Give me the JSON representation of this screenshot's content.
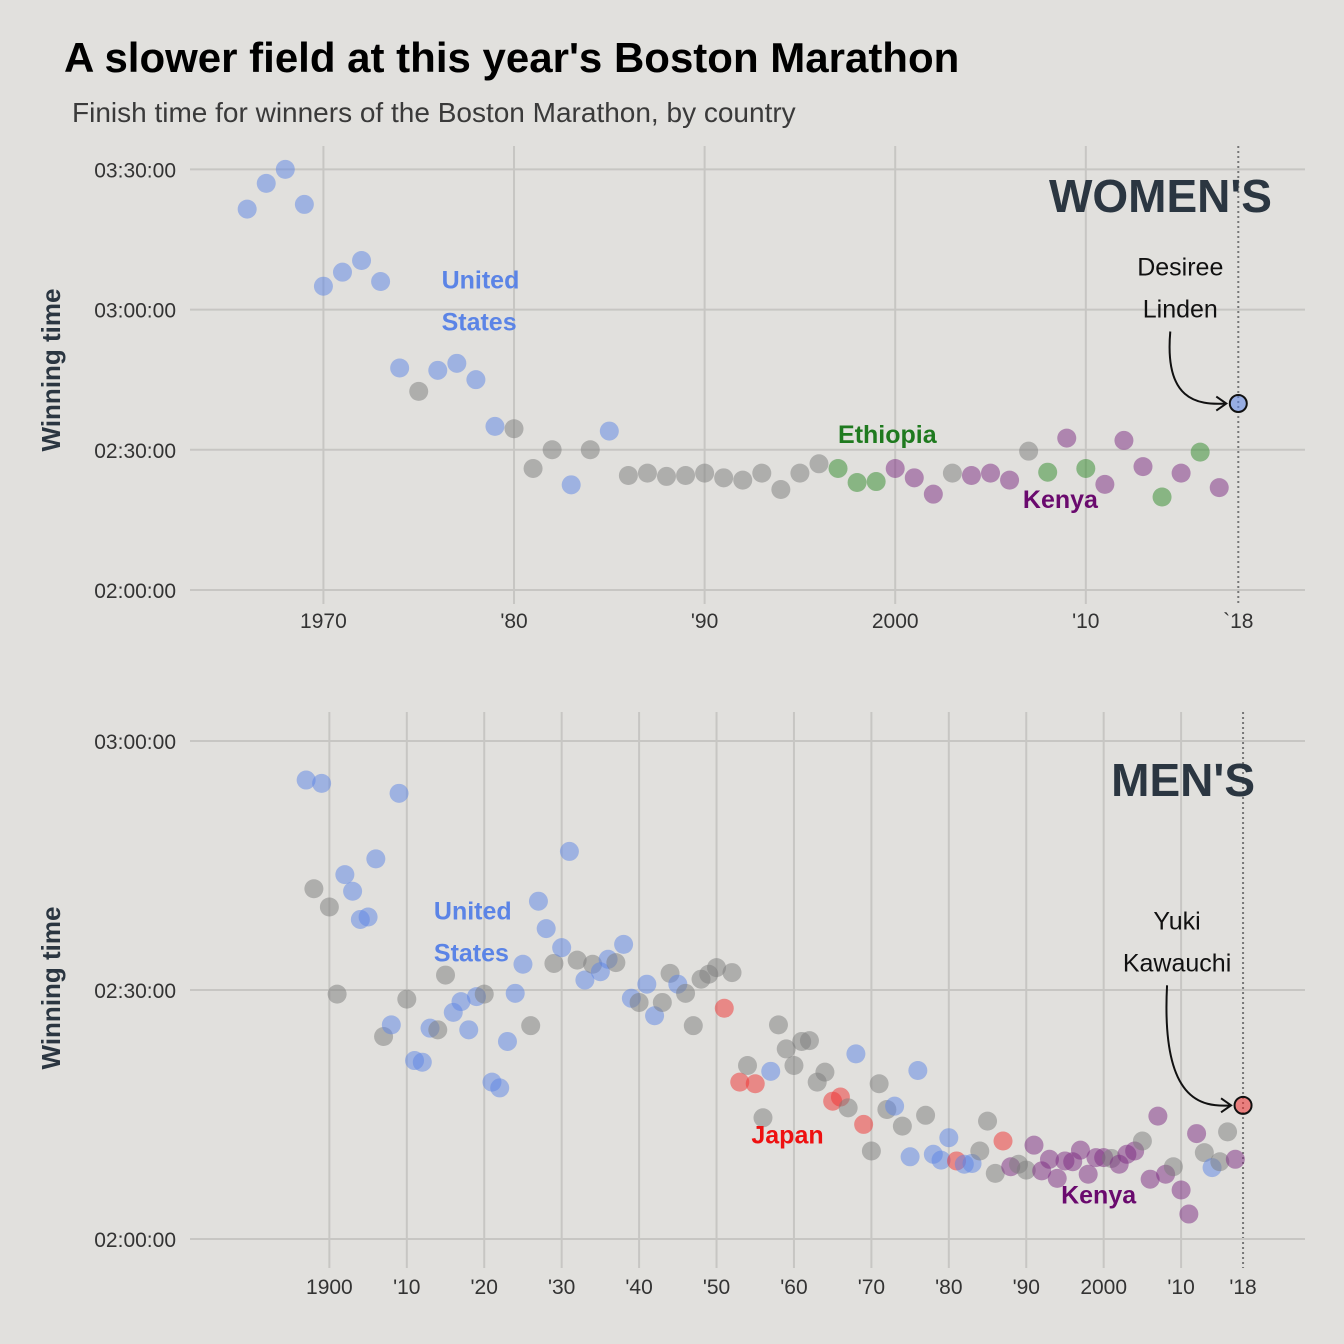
{
  "title": "A slower field at this year's Boston Marathon",
  "subtitle": "Finish time for winners of the Boston Marathon, by country",
  "colors": {
    "USA": "#5b84e6",
    "Other": "#7c7c7c",
    "Ethiopia": "#2f8a2a",
    "Kenya": "#7b2a82",
    "Japan": "#f03030",
    "ethiopia_label": "#1f7a1f",
    "kenya_label": "#6a0a6e",
    "japan_label": "#ee1111",
    "usa_label": "#5b84e6"
  },
  "chart_data": [
    {
      "type": "scatter",
      "panel": "WOMEN'S",
      "ylabel": "Winning time",
      "xlim": [
        1963,
        2021.5
      ],
      "ylim_minutes": [
        117,
        215
      ],
      "x_ticks": [
        1970,
        1980,
        1990,
        2000,
        2010,
        2018
      ],
      "x_tick_labels": [
        "1970",
        "'80",
        "'90",
        "2000",
        "'10",
        "`18"
      ],
      "y_ticks_minutes": [
        120,
        150,
        180,
        210
      ],
      "y_tick_labels": [
        "02:00:00",
        "02:30:00",
        "03:00:00",
        "03:30:00"
      ],
      "annotations": [
        {
          "text": [
            "United",
            "States"
          ],
          "x": 1976.2,
          "y_min": 184.5,
          "color_key": "usa_label"
        },
        {
          "text": [
            "Ethiopia"
          ],
          "x": 1997,
          "y_min": 151.5,
          "color_key": "ethiopia_label"
        },
        {
          "text": [
            "Kenya"
          ],
          "x": 2006.7,
          "y_min": 137.5,
          "color_key": "kenya_label"
        }
      ],
      "callout": {
        "text": [
          "Desiree",
          "Linden"
        ],
        "x": 2018,
        "y_min": 159.9
      },
      "points": [
        {
          "year": 1966,
          "min": 201.5,
          "c": "USA"
        },
        {
          "year": 1967,
          "min": 207,
          "c": "USA"
        },
        {
          "year": 1968,
          "min": 210,
          "c": "USA"
        },
        {
          "year": 1969,
          "min": 202.5,
          "c": "USA"
        },
        {
          "year": 1970,
          "min": 185,
          "c": "USA"
        },
        {
          "year": 1971,
          "min": 188,
          "c": "USA"
        },
        {
          "year": 1972,
          "min": 190.5,
          "c": "USA"
        },
        {
          "year": 1973,
          "min": 186,
          "c": "USA"
        },
        {
          "year": 1974,
          "min": 167.5,
          "c": "USA"
        },
        {
          "year": 1975,
          "min": 162.5,
          "c": "Other"
        },
        {
          "year": 1976,
          "min": 167,
          "c": "USA"
        },
        {
          "year": 1977,
          "min": 168.5,
          "c": "USA"
        },
        {
          "year": 1978,
          "min": 165,
          "c": "USA"
        },
        {
          "year": 1979,
          "min": 155,
          "c": "USA"
        },
        {
          "year": 1980,
          "min": 154.5,
          "c": "Other"
        },
        {
          "year": 1981,
          "min": 146,
          "c": "Other"
        },
        {
          "year": 1982,
          "min": 150,
          "c": "Other"
        },
        {
          "year": 1983,
          "min": 142.5,
          "c": "USA"
        },
        {
          "year": 1984,
          "min": 150,
          "c": "Other"
        },
        {
          "year": 1985,
          "min": 154,
          "c": "USA"
        },
        {
          "year": 1986,
          "min": 144.5,
          "c": "Other"
        },
        {
          "year": 1987,
          "min": 145,
          "c": "Other"
        },
        {
          "year": 1988,
          "min": 144.3,
          "c": "Other"
        },
        {
          "year": 1989,
          "min": 144.5,
          "c": "Other"
        },
        {
          "year": 1990,
          "min": 145,
          "c": "Other"
        },
        {
          "year": 1991,
          "min": 144,
          "c": "Other"
        },
        {
          "year": 1992,
          "min": 143.5,
          "c": "Other"
        },
        {
          "year": 1993,
          "min": 145,
          "c": "Other"
        },
        {
          "year": 1994,
          "min": 141.5,
          "c": "Other"
        },
        {
          "year": 1995,
          "min": 145,
          "c": "Other"
        },
        {
          "year": 1996,
          "min": 147,
          "c": "Other"
        },
        {
          "year": 1997,
          "min": 146,
          "c": "Ethiopia"
        },
        {
          "year": 1998,
          "min": 143,
          "c": "Ethiopia"
        },
        {
          "year": 1999,
          "min": 143.2,
          "c": "Ethiopia"
        },
        {
          "year": 2000,
          "min": 146,
          "c": "Kenya"
        },
        {
          "year": 2001,
          "min": 144,
          "c": "Kenya"
        },
        {
          "year": 2002,
          "min": 140.5,
          "c": "Kenya"
        },
        {
          "year": 2003,
          "min": 145,
          "c": "Other"
        },
        {
          "year": 2004,
          "min": 144.5,
          "c": "Kenya"
        },
        {
          "year": 2005,
          "min": 145,
          "c": "Kenya"
        },
        {
          "year": 2006,
          "min": 143.5,
          "c": "Kenya"
        },
        {
          "year": 2007,
          "min": 149.7,
          "c": "Other"
        },
        {
          "year": 2008,
          "min": 145.2,
          "c": "Ethiopia"
        },
        {
          "year": 2009,
          "min": 152.5,
          "c": "Kenya"
        },
        {
          "year": 2010,
          "min": 146,
          "c": "Ethiopia"
        },
        {
          "year": 2011,
          "min": 142.6,
          "c": "Kenya"
        },
        {
          "year": 2012,
          "min": 152,
          "c": "Kenya"
        },
        {
          "year": 2013,
          "min": 146.4,
          "c": "Kenya"
        },
        {
          "year": 2014,
          "min": 139.9,
          "c": "Ethiopia"
        },
        {
          "year": 2015,
          "min": 145,
          "c": "Kenya"
        },
        {
          "year": 2016,
          "min": 149.5,
          "c": "Ethiopia"
        },
        {
          "year": 2017,
          "min": 141.9,
          "c": "Kenya"
        },
        {
          "year": 2018,
          "min": 159.9,
          "c": "USA",
          "highlight": true
        }
      ]
    },
    {
      "type": "scatter",
      "panel": "MEN'S",
      "ylabel": "Winning time",
      "xlim": [
        1882,
        2026
      ],
      "ylim_minutes": [
        116.5,
        183.5
      ],
      "x_ticks": [
        1900,
        1910,
        1920,
        1930,
        1940,
        1950,
        1960,
        1970,
        1980,
        1990,
        2000,
        2010,
        2018
      ],
      "x_tick_labels": [
        "1900",
        "'10",
        "'20",
        "'30",
        "'40",
        "'50",
        "'60",
        "'70",
        "'80",
        "'90",
        "2000",
        "'10",
        "'18"
      ],
      "y_ticks_minutes": [
        120,
        150,
        180
      ],
      "y_tick_labels": [
        "02:00:00",
        "02:30:00",
        "03:00:00"
      ],
      "annotations": [
        {
          "text": [
            "United",
            "States"
          ],
          "x": 1913.5,
          "y_min": 158.5,
          "color_key": "usa_label"
        },
        {
          "text": [
            "Japan"
          ],
          "x": 1954.5,
          "y_min": 131.5,
          "color_key": "japan_label"
        },
        {
          "text": [
            "Kenya"
          ],
          "x": 1994.5,
          "y_min": 124.3,
          "color_key": "kenya_label"
        }
      ],
      "callout": {
        "text": [
          "Yuki",
          "Kawauchi"
        ],
        "x": 2018,
        "y_min": 136.1
      },
      "points": [
        {
          "year": 1897,
          "min": 175.3,
          "c": "USA"
        },
        {
          "year": 1898,
          "min": 162.2,
          "c": "Other"
        },
        {
          "year": 1899,
          "min": 174.9,
          "c": "USA"
        },
        {
          "year": 1900,
          "min": 160,
          "c": "Other"
        },
        {
          "year": 1901,
          "min": 149.5,
          "c": "Other"
        },
        {
          "year": 1902,
          "min": 163.9,
          "c": "USA"
        },
        {
          "year": 1903,
          "min": 161.9,
          "c": "USA"
        },
        {
          "year": 1904,
          "min": 158.5,
          "c": "USA"
        },
        {
          "year": 1905,
          "min": 158.8,
          "c": "USA"
        },
        {
          "year": 1906,
          "min": 165.8,
          "c": "USA"
        },
        {
          "year": 1907,
          "min": 144.4,
          "c": "Other"
        },
        {
          "year": 1908,
          "min": 145.8,
          "c": "USA"
        },
        {
          "year": 1909,
          "min": 173.7,
          "c": "USA"
        },
        {
          "year": 1910,
          "min": 148.9,
          "c": "Other"
        },
        {
          "year": 1911,
          "min": 141.5,
          "c": "USA"
        },
        {
          "year": 1912,
          "min": 141.3,
          "c": "USA"
        },
        {
          "year": 1913,
          "min": 145.4,
          "c": "USA"
        },
        {
          "year": 1914,
          "min": 145.2,
          "c": "Other"
        },
        {
          "year": 1915,
          "min": 151.8,
          "c": "Other"
        },
        {
          "year": 1916,
          "min": 147.3,
          "c": "USA"
        },
        {
          "year": 1917,
          "min": 148.6,
          "c": "USA"
        },
        {
          "year": 1918,
          "min": 145.2,
          "c": "USA"
        },
        {
          "year": 1919,
          "min": 149.2,
          "c": "USA"
        },
        {
          "year": 1920,
          "min": 149.5,
          "c": "Other"
        },
        {
          "year": 1921,
          "min": 138.9,
          "c": "USA"
        },
        {
          "year": 1922,
          "min": 138.2,
          "c": "USA"
        },
        {
          "year": 1923,
          "min": 143.8,
          "c": "USA"
        },
        {
          "year": 1924,
          "min": 149.6,
          "c": "USA"
        },
        {
          "year": 1925,
          "min": 153.1,
          "c": "USA"
        },
        {
          "year": 1926,
          "min": 145.7,
          "c": "Other"
        },
        {
          "year": 1927,
          "min": 160.7,
          "c": "USA"
        },
        {
          "year": 1928,
          "min": 157.4,
          "c": "USA"
        },
        {
          "year": 1929,
          "min": 153.2,
          "c": "Other"
        },
        {
          "year": 1930,
          "min": 155.1,
          "c": "USA"
        },
        {
          "year": 1931,
          "min": 166.7,
          "c": "USA"
        },
        {
          "year": 1932,
          "min": 153.6,
          "c": "Other"
        },
        {
          "year": 1933,
          "min": 151.2,
          "c": "USA"
        },
        {
          "year": 1934,
          "min": 153.1,
          "c": "Other"
        },
        {
          "year": 1935,
          "min": 152.2,
          "c": "USA"
        },
        {
          "year": 1936,
          "min": 153.7,
          "c": "USA"
        },
        {
          "year": 1937,
          "min": 153.3,
          "c": "Other"
        },
        {
          "year": 1938,
          "min": 155.5,
          "c": "USA"
        },
        {
          "year": 1939,
          "min": 149,
          "c": "USA"
        },
        {
          "year": 1940,
          "min": 148.5,
          "c": "Other"
        },
        {
          "year": 1941,
          "min": 150.7,
          "c": "USA"
        },
        {
          "year": 1942,
          "min": 146.9,
          "c": "USA"
        },
        {
          "year": 1943,
          "min": 148.5,
          "c": "Other"
        },
        {
          "year": 1944,
          "min": 152,
          "c": "Other"
        },
        {
          "year": 1945,
          "min": 150.7,
          "c": "USA"
        },
        {
          "year": 1946,
          "min": 149.6,
          "c": "Other"
        },
        {
          "year": 1947,
          "min": 145.7,
          "c": "Other"
        },
        {
          "year": 1948,
          "min": 151.3,
          "c": "Other"
        },
        {
          "year": 1949,
          "min": 151.9,
          "c": "Other"
        },
        {
          "year": 1950,
          "min": 152.7,
          "c": "Other"
        },
        {
          "year": 1951,
          "min": 147.8,
          "c": "Japan"
        },
        {
          "year": 1952,
          "min": 152.1,
          "c": "Other"
        },
        {
          "year": 1953,
          "min": 138.9,
          "c": "Japan"
        },
        {
          "year": 1954,
          "min": 140.9,
          "c": "Other"
        },
        {
          "year": 1955,
          "min": 138.7,
          "c": "Japan"
        },
        {
          "year": 1956,
          "min": 134.6,
          "c": "Other"
        },
        {
          "year": 1957,
          "min": 140.2,
          "c": "USA"
        },
        {
          "year": 1958,
          "min": 145.8,
          "c": "Other"
        },
        {
          "year": 1959,
          "min": 142.9,
          "c": "Other"
        },
        {
          "year": 1960,
          "min": 140.9,
          "c": "Other"
        },
        {
          "year": 1961,
          "min": 143.8,
          "c": "Other"
        },
        {
          "year": 1962,
          "min": 143.9,
          "c": "Other"
        },
        {
          "year": 1963,
          "min": 138.9,
          "c": "Other"
        },
        {
          "year": 1964,
          "min": 140.1,
          "c": "Other"
        },
        {
          "year": 1965,
          "min": 136.6,
          "c": "Japan"
        },
        {
          "year": 1966,
          "min": 137.1,
          "c": "Japan"
        },
        {
          "year": 1967,
          "min": 135.8,
          "c": "Other"
        },
        {
          "year": 1968,
          "min": 142.3,
          "c": "USA"
        },
        {
          "year": 1969,
          "min": 133.8,
          "c": "Japan"
        },
        {
          "year": 1970,
          "min": 130.6,
          "c": "Other"
        },
        {
          "year": 1971,
          "min": 138.7,
          "c": "Other"
        },
        {
          "year": 1972,
          "min": 135.6,
          "c": "Other"
        },
        {
          "year": 1973,
          "min": 136.0,
          "c": "USA"
        },
        {
          "year": 1974,
          "min": 133.6,
          "c": "Other"
        },
        {
          "year": 1975,
          "min": 129.9,
          "c": "USA"
        },
        {
          "year": 1976,
          "min": 140.3,
          "c": "USA"
        },
        {
          "year": 1977,
          "min": 134.9,
          "c": "Other"
        },
        {
          "year": 1978,
          "min": 130.2,
          "c": "USA"
        },
        {
          "year": 1979,
          "min": 129.5,
          "c": "USA"
        },
        {
          "year": 1980,
          "min": 132.2,
          "c": "USA"
        },
        {
          "year": 1981,
          "min": 129.4,
          "c": "Japan"
        },
        {
          "year": 1982,
          "min": 129,
          "c": "USA"
        },
        {
          "year": 1983,
          "min": 129.1,
          "c": "USA"
        },
        {
          "year": 1984,
          "min": 130.6,
          "c": "Other"
        },
        {
          "year": 1985,
          "min": 134.2,
          "c": "Other"
        },
        {
          "year": 1986,
          "min": 127.9,
          "c": "Other"
        },
        {
          "year": 1987,
          "min": 131.8,
          "c": "Japan"
        },
        {
          "year": 1988,
          "min": 128.7,
          "c": "Kenya"
        },
        {
          "year": 1989,
          "min": 129,
          "c": "Other"
        },
        {
          "year": 1990,
          "min": 128.3,
          "c": "Other"
        },
        {
          "year": 1991,
          "min": 131.3,
          "c": "Kenya"
        },
        {
          "year": 1992,
          "min": 128.2,
          "c": "Kenya"
        },
        {
          "year": 1993,
          "min": 129.6,
          "c": "Kenya"
        },
        {
          "year": 1994,
          "min": 127.3,
          "c": "Kenya"
        },
        {
          "year": 1995,
          "min": 129.4,
          "c": "Kenya"
        },
        {
          "year": 1996,
          "min": 129.3,
          "c": "Kenya"
        },
        {
          "year": 1997,
          "min": 130.7,
          "c": "Kenya"
        },
        {
          "year": 1998,
          "min": 127.8,
          "c": "Kenya"
        },
        {
          "year": 1999,
          "min": 129.8,
          "c": "Kenya"
        },
        {
          "year": 2000,
          "min": 129.8,
          "c": "Kenya"
        },
        {
          "year": 2001,
          "min": 129.7,
          "c": "Other"
        },
        {
          "year": 2002,
          "min": 129.0,
          "c": "Kenya"
        },
        {
          "year": 2003,
          "min": 130.2,
          "c": "Kenya"
        },
        {
          "year": 2004,
          "min": 130.6,
          "c": "Kenya"
        },
        {
          "year": 2005,
          "min": 131.8,
          "c": "Other"
        },
        {
          "year": 2006,
          "min": 127.2,
          "c": "Kenya"
        },
        {
          "year": 2007,
          "min": 134.8,
          "c": "Kenya"
        },
        {
          "year": 2008,
          "min": 127.8,
          "c": "Kenya"
        },
        {
          "year": 2009,
          "min": 128.7,
          "c": "Other"
        },
        {
          "year": 2010,
          "min": 125.9,
          "c": "Kenya"
        },
        {
          "year": 2011,
          "min": 123.0,
          "c": "Kenya"
        },
        {
          "year": 2012,
          "min": 132.7,
          "c": "Kenya"
        },
        {
          "year": 2013,
          "min": 130.4,
          "c": "Other"
        },
        {
          "year": 2014,
          "min": 128.6,
          "c": "USA"
        },
        {
          "year": 2015,
          "min": 129.3,
          "c": "Other"
        },
        {
          "year": 2016,
          "min": 132.9,
          "c": "Other"
        },
        {
          "year": 2017,
          "min": 129.6,
          "c": "Kenya"
        },
        {
          "year": 2018,
          "min": 136.1,
          "c": "Japan",
          "highlight": true
        }
      ]
    }
  ]
}
